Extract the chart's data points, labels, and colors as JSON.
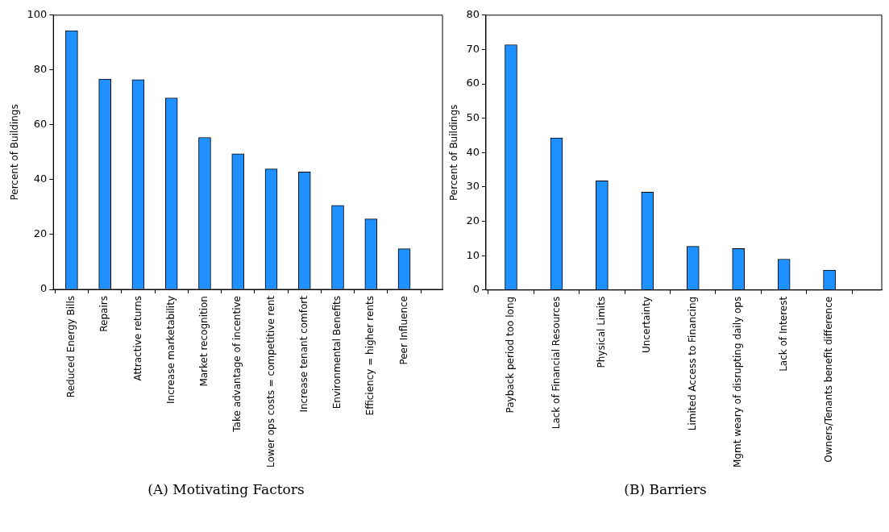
{
  "chart_data": [
    {
      "type": "bar",
      "title": "(A) Motivating Factors",
      "ylabel": "Percent of Buildings",
      "categories": [
        "Reduced Energy Bills",
        "Repairs",
        "Attractive returns",
        "Increase marketability",
        "Market recognition",
        "Take advantage of incentive",
        "Lower ops costs = competitive rent",
        "Increase tenant comfort",
        "Environmental Benefits",
        "Efficiency = higher rents",
        "Peer Influence"
      ],
      "values": [
        94.3,
        76.7,
        76.5,
        69.8,
        55.4,
        49.4,
        43.9,
        42.8,
        30.6,
        25.7,
        14.8
      ],
      "color": "#1e90ff",
      "ylim": [
        0,
        100
      ],
      "yticks": [
        0,
        20,
        40,
        60,
        80,
        100
      ],
      "grid": false,
      "legend": false
    },
    {
      "type": "bar",
      "title": "(B) Barriers",
      "ylabel": "Percent of Buildings",
      "categories": [
        "Payback period too long",
        "Lack of Financial Resources",
        "Physical Limits",
        "Uncertainty",
        "Limited Access to Financing",
        "Mgmt weary of disrupting daily ops",
        "Lack of Interest",
        "Owners/Tenants benefit difference"
      ],
      "values": [
        71.4,
        44.3,
        31.8,
        28.5,
        12.7,
        12.1,
        9.0,
        5.8
      ],
      "color": "#1e90ff",
      "ylim": [
        0,
        80
      ],
      "yticks": [
        0,
        10,
        20,
        30,
        40,
        50,
        60,
        70,
        80
      ],
      "grid": false,
      "legend": false
    }
  ]
}
